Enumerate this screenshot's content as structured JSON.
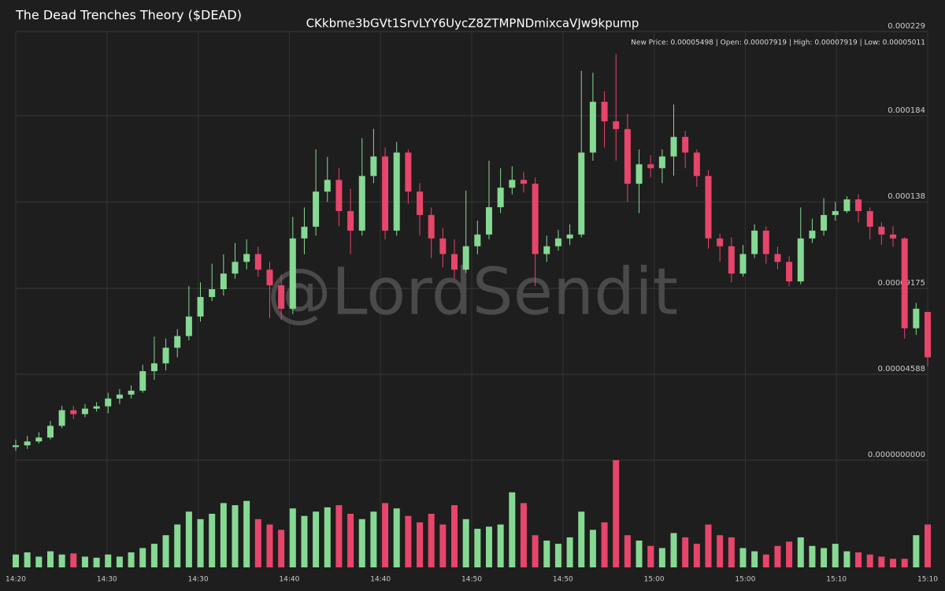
{
  "chart_data": {
    "type": "candlestick",
    "title": "The Dead Trenches Theory ($DEAD)",
    "subtitle": "CKkbme3bGVt1SrvLYY6UycZ8ZTMPNDmixcaVJw9kpump",
    "info": "New Price: 0.00005498 | Open: 0.00007919 | High: 0.00007919 | Low: 0.00005011",
    "watermark": "@LordSendit",
    "up_color": "#86d993",
    "down_color": "#e8456b",
    "grid": true,
    "ylim": [
      0,
      0.000229
    ],
    "yticks": [
      {
        "value": 0,
        "label": "0.0000000000"
      },
      4.588e-05,
      9.175e-05,
      0.000138,
      0.000184,
      0.000229
    ],
    "x_labels": [
      "14:20",
      "14:30",
      "14:30",
      "14:40",
      "14:40",
      "14:50",
      "14:50",
      "15:00",
      "15:00",
      "15:10",
      "15:10"
    ],
    "open": [
      7e-06,
      7.93e-06,
      1.001e-05,
      1.21e-05,
      1.835e-05,
      2.67e-05,
      2.461e-05,
      2.753e-05,
      2.878e-05,
      3.295e-05,
      3.504e-05,
      3.712e-05,
      4.755e-05,
      5.172e-05,
      6.007e-05,
      6.632e-05,
      7.675e-05,
      8.718e-05,
      9.135e-05,
      9.969e-05,
      0.00010595,
      0.00011012,
      0.00010178,
      9.343e-05,
      8.092e-05,
      0.00011846,
      0.00012472,
      0.00014349,
      0.00014975,
      0.00013306,
      0.00012263,
      0.00015183,
      0.00016226,
      0.00012263,
      0.00016435,
      0.00014349,
      0.00013098,
      0.00011846,
      0.00011012,
      0.00010178,
      0.00011429,
      0.00012055,
      0.00013515,
      0.00014557,
      0.00014975,
      0.00014766,
      0.00011012,
      0.00011429,
      0.00011846,
      0.00012055,
      0.00016435,
      0.00019146,
      0.00018103,
      0.00017686,
      0.00014766,
      0.00015809,
      0.000156,
      0.00016226,
      0.00017269,
      0.00016435,
      0.00015183,
      0.00011846,
      0.00011429,
      9.969e-05,
      0.00011012,
      0.00012263,
      0.00011012,
      0.00010595,
      9.552e-05,
      0.00011846,
      0.00012263,
      0.00013098,
      0.00013306,
      0.00013932,
      0.00013306,
      0.00012472,
      0.00012055,
      0.00011846,
      7.049e-05,
      7.919e-05
    ],
    "high": [
      1.1e-05,
      1.3e-05,
      1.5e-05,
      2.1e-05,
      2.9e-05,
      2.9e-05,
      3e-05,
      3.1e-05,
      3.6e-05,
      3.8e-05,
      4e-05,
      5.1e-05,
      6.6e-05,
      6.5e-05,
      7e-05,
      9.3e-05,
      9.5e-05,
      0.000105,
      0.00011,
      0.000116,
      0.000118,
      0.000114,
      0.000106,
      9.9e-05,
      0.00013,
      0.000135,
      0.000166,
      0.000162,
      0.000156,
      0.000145,
      0.000172,
      0.000177,
      0.000167,
      0.00017,
      0.000166,
      0.000148,
      0.000135,
      0.000124,
      0.000118,
      0.000144,
      0.000128,
      0.00016,
      0.000156,
      0.000157,
      0.000154,
      0.000151,
      0.00012,
      0.000123,
      0.000126,
      0.000208,
      0.000207,
      0.000197,
      0.000217,
      0.000185,
      0.000166,
      0.000163,
      0.000166,
      0.00019,
      0.000176,
      0.000166,
      0.000155,
      0.000121,
      0.000119,
      0.000115,
      0.000126,
      0.000125,
      0.000114,
      0.000109,
      0.000135,
      0.000129,
      0.00014,
      0.000138,
      0.000141,
      0.000142,
      0.000135,
      0.000127,
      0.000125,
      0.000119,
      8.4e-05,
      7.919e-05
    ],
    "low": [
      5e-06,
      6e-06,
      9e-06,
      1.1e-05,
      1.7e-05,
      2.2e-05,
      2.3e-05,
      2.6e-05,
      2.5e-05,
      3e-05,
      3.3e-05,
      3.6e-05,
      4.3e-05,
      4.8e-05,
      5.5e-05,
      6.4e-05,
      7.4e-05,
      8.5e-05,
      8.8e-05,
      9.7e-05,
      0.000102,
      9.8e-05,
      7.6e-05,
      7.5e-05,
      7.8e-05,
      0.00011,
      0.00012,
      0.000138,
      0.000125,
      0.00011,
      0.00012,
      0.000148,
      0.000118,
      0.00012,
      0.000137,
      0.00012,
      0.000108,
      0.000103,
      9.7e-05,
      0.0001,
      0.00011,
      0.000118,
      0.000132,
      0.000142,
      0.000143,
      9.3e-05,
      0.000106,
      0.000112,
      0.000115,
      0.000119,
      0.00016,
      0.000167,
      0.00016,
      0.000138,
      0.000132,
      0.000151,
      0.000148,
      0.000152,
      0.000156,
      0.000146,
      0.000113,
      0.000106,
      9.5e-05,
      9.8e-05,
      0.000108,
      0.000105,
      0.000102,
      9.3e-05,
      9.4e-05,
      0.000116,
      0.00012,
      0.000128,
      0.000132,
      0.000127,
      0.000118,
      0.000115,
      0.000114,
      6.5e-05,
      6.7e-05,
      5.011e-05
    ],
    "close": [
      7.93e-06,
      1.001e-05,
      1.21e-05,
      1.835e-05,
      2.67e-05,
      2.461e-05,
      2.753e-05,
      2.878e-05,
      3.295e-05,
      3.504e-05,
      3.712e-05,
      4.755e-05,
      5.172e-05,
      6.007e-05,
      6.632e-05,
      7.675e-05,
      8.718e-05,
      9.135e-05,
      9.969e-05,
      0.00010595,
      0.00011012,
      0.00010178,
      9.343e-05,
      8.092e-05,
      0.00011846,
      0.00012472,
      0.00014349,
      0.00014975,
      0.00013306,
      0.00012263,
      0.00015183,
      0.00016226,
      0.00012263,
      0.00016435,
      0.00014349,
      0.00013098,
      0.00011846,
      0.00011012,
      0.00010178,
      0.00011429,
      0.00012055,
      0.00013515,
      0.00014557,
      0.00014975,
      0.00014766,
      0.00011012,
      0.00011429,
      0.00011846,
      0.00012055,
      0.00016435,
      0.00019146,
      0.00018103,
      0.00017686,
      0.00014766,
      0.00015809,
      0.000156,
      0.00016226,
      0.00017269,
      0.00016435,
      0.00015183,
      0.00011846,
      0.00011429,
      9.969e-05,
      0.00011012,
      0.00012263,
      0.00011012,
      0.00010595,
      9.552e-05,
      0.00011846,
      0.00012263,
      0.00013098,
      0.00013306,
      0.00013932,
      0.00013306,
      0.00012472,
      0.00012055,
      0.00011846,
      7.049e-05,
      8.092e-05,
      5.498e-05
    ],
    "volume": [
      12,
      14,
      10,
      15,
      12,
      13,
      10,
      9,
      12,
      10,
      14,
      18,
      22,
      30,
      40,
      52,
      45,
      50,
      60,
      58,
      62,
      45,
      40,
      35,
      55,
      48,
      52,
      56,
      58,
      50,
      45,
      52,
      60,
      55,
      48,
      42,
      50,
      40,
      58,
      45,
      36,
      38,
      40,
      70,
      60,
      30,
      25,
      22,
      28,
      52,
      35,
      42,
      100,
      30,
      25,
      20,
      18,
      32,
      28,
      22,
      40,
      30,
      28,
      18,
      15,
      12,
      20,
      24,
      28,
      20,
      18,
      22,
      15,
      14,
      12,
      10,
      8,
      8,
      30,
      40
    ]
  }
}
